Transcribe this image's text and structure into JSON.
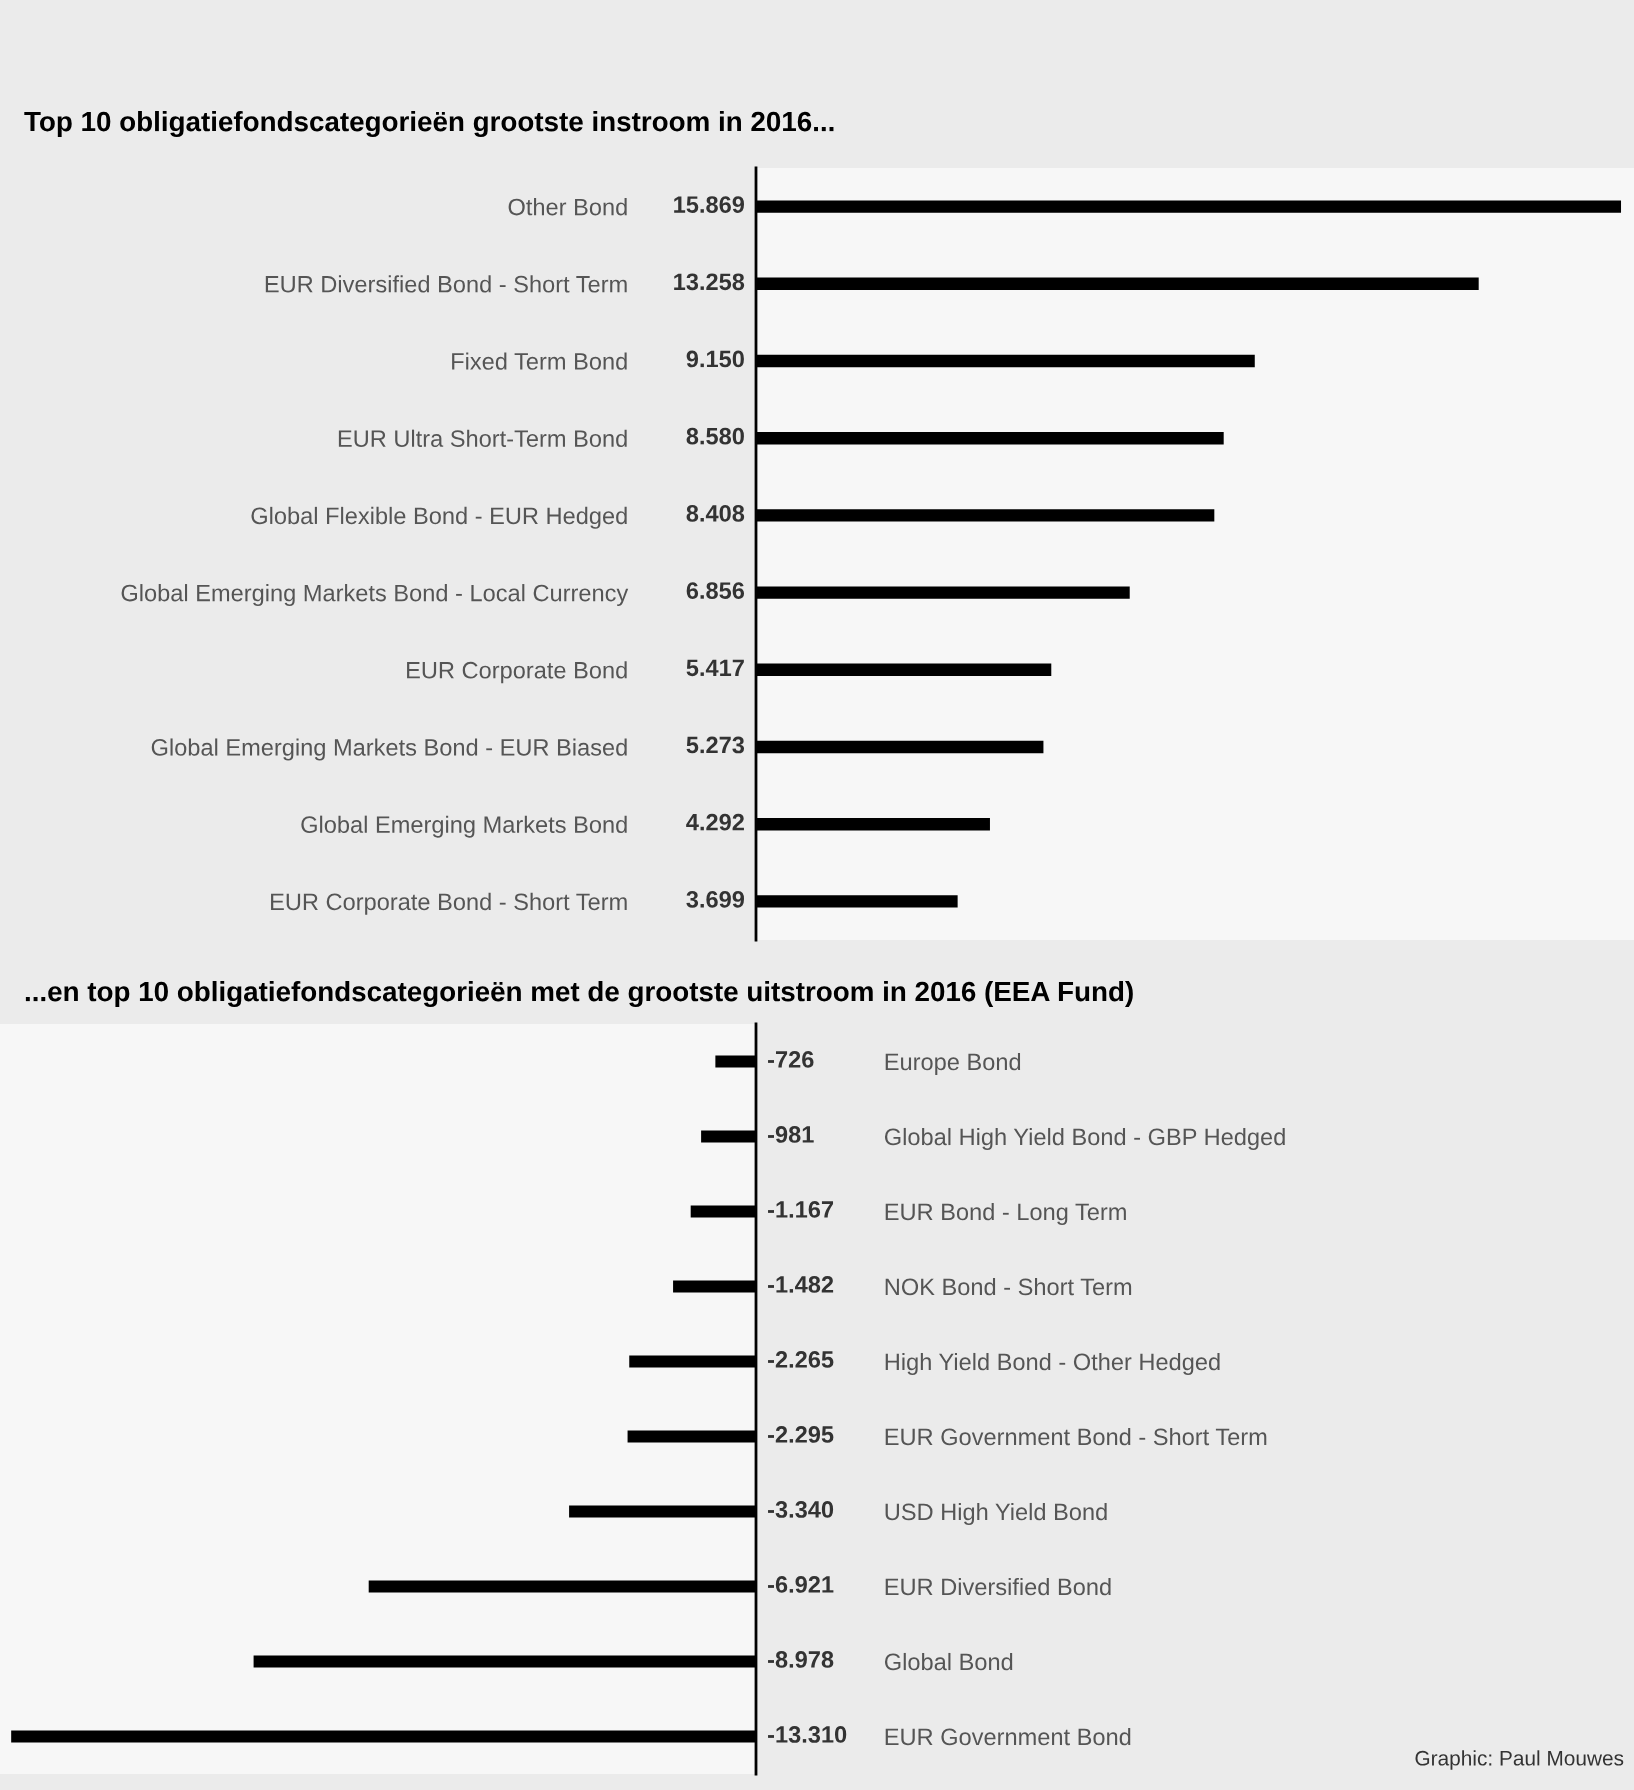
{
  "chart_data": [
    {
      "type": "bar",
      "orientation": "horizontal",
      "title": "Top 10 obligatiefondscategorieën grootste instroom in 2016...",
      "color": "#000000",
      "categories": [
        "Other Bond",
        "EUR Diversified Bond - Short Term",
        "Fixed Term Bond",
        "EUR Ultra Short-Term Bond",
        "Global Flexible Bond - EUR Hedged",
        "Global Emerging Markets Bond - Local Currency",
        "EUR Corporate Bond",
        "Global Emerging Markets Bond - EUR Biased",
        "Global Emerging Markets Bond",
        "EUR Corporate Bond - Short Term"
      ],
      "values": [
        15869,
        13258,
        9150,
        8580,
        8408,
        6856,
        5417,
        5273,
        4292,
        3699
      ],
      "value_labels": [
        "15.869",
        "13.258",
        "9.150",
        "8.580",
        "8.408",
        "6.856",
        "5.417",
        "5.273",
        "4.292",
        "3.699"
      ]
    },
    {
      "type": "bar",
      "orientation": "horizontal",
      "title": "...en top 10 obligatiefondscategorieën met de grootste uitstroom in 2016 (EEA Fund)",
      "color": "#000000",
      "categories": [
        "Europe Bond",
        "Global High Yield Bond - GBP Hedged",
        "EUR Bond - Long Term",
        "NOK Bond - Short Term",
        "High Yield Bond - Other Hedged",
        "EUR Government Bond - Short Term",
        "USD High Yield Bond",
        "EUR Diversified Bond",
        "Global Bond",
        "EUR Government Bond"
      ],
      "values": [
        -726,
        -981,
        -1167,
        -1482,
        -2265,
        -2295,
        -3340,
        -6921,
        -8978,
        -13310
      ],
      "value_labels": [
        "-726",
        "-981",
        "-1.167",
        "-1.482",
        "-2.265",
        "-2.295",
        "-3.340",
        "-6.921",
        "-8.978",
        "-13.310"
      ],
      "annotations": [
        "Graphic: Paul Mouwes"
      ]
    }
  ]
}
